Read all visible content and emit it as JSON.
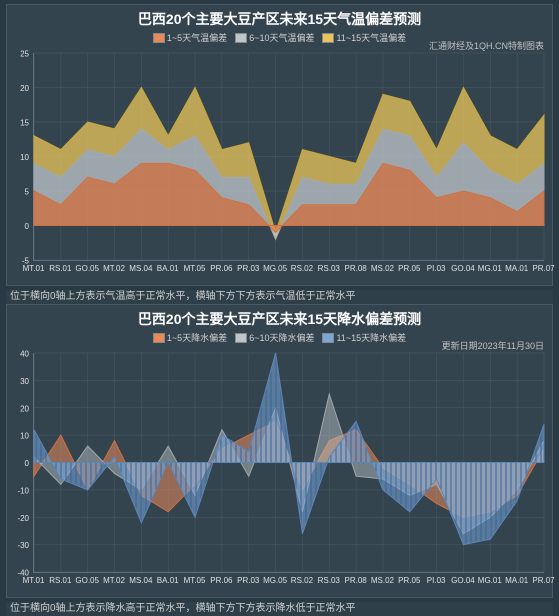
{
  "background_color": "#2a3a44",
  "panel_bg": "#34444f",
  "panel_border": "#4a5a64",
  "grid_color": "#4a5a64",
  "axis_color": "#6a7a84",
  "text_color": "#e0e0e0",
  "title_color": "#ffffff",
  "title_fontsize": 14,
  "legend_fontsize": 9,
  "axis_fontsize": 8,
  "caption_fontsize": 10,
  "categories": [
    "MT.01",
    "RS.01",
    "GO.05",
    "MT.02",
    "MS.04",
    "BA.01",
    "MT.05",
    "PR.06",
    "PR.03",
    "MG.05",
    "RS.02",
    "RS.03",
    "PR.08",
    "MS.02",
    "PR.05",
    "PI.03",
    "GO.04",
    "MG.01",
    "MA.01",
    "PR.07"
  ],
  "tempChart": {
    "type": "stacked-area",
    "title": "巴西20个主要大豆产区未来15天气温偏差预测",
    "corner_note": "汇通财经及1QH.CN特制图表",
    "caption": "位于横向0轴上方表示气温高于正常水平，横轴下方下方表示气温低于正常水平",
    "ylim": [
      -5,
      25
    ],
    "ytick_step": 5,
    "legend": [
      {
        "label": "1~5天气温偏差",
        "color": "#e88a5a"
      },
      {
        "label": "6~10天气温偏差",
        "color": "#c0c7cc"
      },
      {
        "label": "11~15天气温偏差",
        "color": "#eac65a"
      }
    ],
    "series": {
      "s1_5": [
        5,
        3,
        7,
        6,
        9,
        9,
        8,
        4,
        3,
        -1,
        3,
        3,
        3,
        9,
        8,
        4,
        5,
        4,
        2,
        5
      ],
      "s6_10": [
        4,
        4,
        4,
        4,
        5,
        2,
        5,
        3,
        4,
        -1,
        4,
        3,
        3,
        5,
        5,
        3,
        7,
        4,
        4,
        4
      ],
      "s11_15": [
        4,
        4,
        4,
        4,
        6,
        2,
        7,
        4,
        5,
        1,
        4,
        4,
        3,
        5,
        5,
        4,
        8,
        5,
        5,
        7
      ]
    },
    "colors": {
      "s1_5": {
        "fill": "#e88a5a",
        "fill_opacity": 0.8,
        "stroke": "#d0703f"
      },
      "s6_10": {
        "fill": "#c0c7cc",
        "fill_opacity": 0.75,
        "stroke": "#a0a7ac"
      },
      "s11_15": {
        "fill": "#eac65a",
        "fill_opacity": 0.75,
        "stroke": "#caa63a"
      }
    }
  },
  "precipChart": {
    "type": "overlap-area",
    "title": "巴西20个主要大豆产区未来15天降水偏差预测",
    "corner_note": "更新日期2023年11月30日",
    "caption": "位于横向0轴上方表示降水高于正常水平，横轴下方下方表示降水低于正常水平",
    "ylim": [
      -40,
      40
    ],
    "ytick_step": 10,
    "legend": [
      {
        "label": "1~5天降水偏差",
        "color": "#e88a5a"
      },
      {
        "label": "6~10天降水偏差",
        "color": "#c0c7cc"
      },
      {
        "label": "11~15天降水偏差",
        "color": "#7aa6d8"
      }
    ],
    "series": {
      "s1_5": [
        -5,
        10,
        -10,
        8,
        -12,
        -18,
        -8,
        5,
        10,
        15,
        -10,
        8,
        12,
        -2,
        -8,
        -15,
        -20,
        -18,
        -12,
        5
      ],
      "s6_10": [
        2,
        -8,
        6,
        -4,
        -10,
        6,
        -12,
        12,
        -5,
        20,
        -18,
        25,
        -5,
        -6,
        -12,
        -8,
        -26,
        -20,
        -10,
        8
      ],
      "s11_15": [
        12,
        -6,
        -10,
        2,
        -22,
        0,
        -20,
        10,
        4,
        40,
        -26,
        2,
        15,
        -10,
        -18,
        -6,
        -30,
        -28,
        -14,
        14
      ]
    },
    "colors": {
      "s1_5": {
        "fill": "#e88a5a",
        "fill_opacity": 0.55,
        "stroke": "#d0703f",
        "hatch": false
      },
      "s6_10": {
        "fill": "#c0c7cc",
        "fill_opacity": 0.45,
        "stroke": "#a0a7ac",
        "hatch": false
      },
      "s11_15": {
        "fill": "#7aa6d8",
        "fill_opacity": 0.55,
        "stroke": "#5a86b8",
        "hatch": true,
        "hatch_color": "#3a6698"
      }
    }
  }
}
